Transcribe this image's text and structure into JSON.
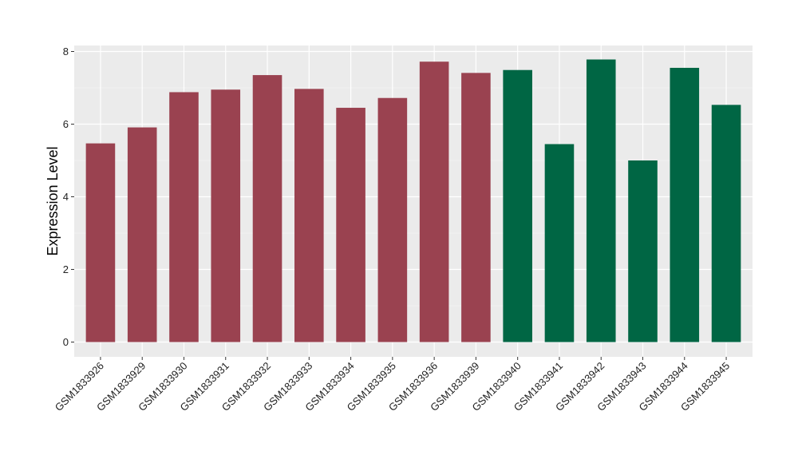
{
  "chart_data": {
    "type": "bar",
    "title": "",
    "xlabel": "",
    "ylabel": "Expression Level",
    "ylim": [
      0,
      8.2
    ],
    "yticks": [
      0,
      2,
      4,
      6,
      8
    ],
    "grid": true,
    "categories": [
      "GSM1833926",
      "GSM1833929",
      "GSM1833930",
      "GSM1833931",
      "GSM1833932",
      "GSM1833933",
      "GSM1833934",
      "GSM1833935",
      "GSM1833936",
      "GSM1833939",
      "GSM1833940",
      "GSM1833941",
      "GSM1833942",
      "GSM1833943",
      "GSM1833944",
      "GSM1833945"
    ],
    "values": [
      5.47,
      5.91,
      6.88,
      6.95,
      7.35,
      6.97,
      6.45,
      6.72,
      7.72,
      7.41,
      7.49,
      5.45,
      7.78,
      5.0,
      7.55,
      6.53
    ],
    "groups": [
      0,
      0,
      0,
      0,
      0,
      0,
      0,
      0,
      0,
      0,
      1,
      1,
      1,
      1,
      1,
      1
    ],
    "group_colors": [
      "#9a4250",
      "#006644"
    ]
  }
}
